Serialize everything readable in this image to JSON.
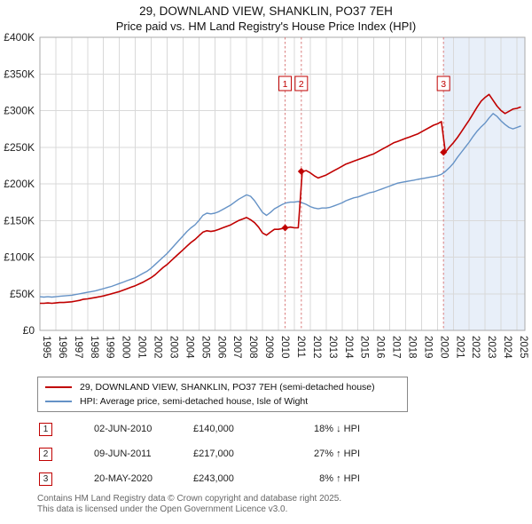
{
  "page": {
    "title": "29, DOWNLAND VIEW, SHANKLIN, PO37 7EH",
    "subtitle": "Price paid vs. HM Land Registry's House Price Index (HPI)",
    "footer_line1": "Contains HM Land Registry data © Crown copyright and database right 2025.",
    "footer_line2": "This data is licensed under the Open Government Licence v3.0."
  },
  "legend": [
    {
      "label": "29, DOWNLAND VIEW, SHANKLIN, PO37 7EH (semi-detached house)",
      "color": "#c00000"
    },
    {
      "label": "HPI: Average price, semi-detached house, Isle of Wight",
      "color": "#6592c6"
    }
  ],
  "transactions": [
    {
      "num": "1",
      "date": "02-JUN-2010",
      "price": "£140,000",
      "hpi_diff": "18% ↓ HPI"
    },
    {
      "num": "2",
      "date": "09-JUN-2011",
      "price": "£217,000",
      "hpi_diff": "27% ↑ HPI"
    },
    {
      "num": "3",
      "date": "20-MAY-2020",
      "price": "£243,000",
      "hpi_diff": "8% ↑ HPI"
    }
  ],
  "chart_data": {
    "type": "line",
    "title": "29, DOWNLAND VIEW, SHANKLIN, PO37 7EH",
    "subtitle": "Price paid vs. HM Land Registry's House Price Index (HPI)",
    "x_unit": "year",
    "x_start": 1995,
    "x_step": 0.25,
    "xlim": [
      1995,
      2025.5
    ],
    "ylim_gbp": [
      0,
      400000
    ],
    "yticks": [
      {
        "value_k": 0,
        "label": "£0"
      },
      {
        "value_k": 50,
        "label": "£50K"
      },
      {
        "value_k": 100,
        "label": "£100K"
      },
      {
        "value_k": 150,
        "label": "£150K"
      },
      {
        "value_k": 200,
        "label": "£200K"
      },
      {
        "value_k": 250,
        "label": "£250K"
      },
      {
        "value_k": 300,
        "label": "£300K"
      },
      {
        "value_k": 350,
        "label": "£350K"
      },
      {
        "value_k": 400,
        "label": "£400K"
      }
    ],
    "xticks": [
      1995,
      1996,
      1997,
      1998,
      1999,
      2000,
      2001,
      2002,
      2003,
      2004,
      2005,
      2006,
      2007,
      2008,
      2009,
      2010,
      2011,
      2012,
      2013,
      2014,
      2015,
      2016,
      2017,
      2018,
      2019,
      2020,
      2021,
      2022,
      2023,
      2024,
      2025
    ],
    "series": [
      {
        "name": "HPI: Average price, semi-detached house, Isle of Wight",
        "color": "#6592c6",
        "width": 1.4,
        "values_k": [
          46,
          45.5,
          46,
          45.5,
          46,
          46.5,
          47,
          47.5,
          48,
          49,
          50,
          51,
          52,
          53,
          54,
          55.5,
          57,
          58.5,
          60,
          62,
          64,
          66,
          68,
          70,
          72,
          75,
          78,
          81,
          85,
          90,
          95,
          100,
          105,
          111,
          117,
          123,
          129,
          135,
          140,
          144,
          150,
          157,
          160,
          159,
          160,
          162,
          165,
          168,
          171,
          175,
          179,
          182,
          185,
          183,
          177,
          169,
          161,
          157,
          161,
          166,
          169,
          172,
          174,
          175,
          175,
          176,
          174,
          172,
          169,
          167,
          166,
          167,
          167,
          168,
          170,
          172,
          174,
          177,
          179,
          181,
          182,
          184,
          186,
          188,
          189,
          191,
          193,
          195,
          197,
          199,
          201,
          202,
          203,
          204,
          205,
          206,
          207,
          208,
          209,
          210,
          211,
          213,
          217,
          222,
          228,
          236,
          243,
          250,
          257,
          265,
          272,
          278,
          283,
          290,
          296,
          292,
          286,
          281,
          277,
          275,
          277,
          279
        ]
      },
      {
        "name": "29, DOWNLAND VIEW, SHANKLIN, PO37 7EH (semi-detached house)",
        "color": "#c00000",
        "width": 1.6,
        "values_k": [
          37,
          37,
          37.5,
          37,
          37.5,
          38,
          38,
          38.5,
          39,
          40,
          41,
          42.5,
          43,
          44,
          45,
          46,
          47,
          48.5,
          50,
          51.5,
          53,
          55,
          57,
          59,
          61,
          63.5,
          66,
          69,
          72,
          76,
          81,
          86,
          90,
          95,
          100,
          105,
          110,
          115,
          120,
          124,
          129,
          134,
          136,
          135,
          136,
          138,
          140,
          142,
          144,
          147,
          150,
          152,
          154,
          151,
          147,
          141,
          133,
          130,
          134,
          138,
          138,
          139,
          140,
          141,
          140,
          140,
          217,
          218,
          215,
          211,
          208,
          210,
          212,
          215,
          218,
          221,
          224,
          227,
          229,
          231,
          233,
          235,
          237,
          239,
          241,
          244,
          247,
          250,
          253,
          256,
          258,
          260,
          262,
          264,
          266,
          268,
          271,
          274,
          277,
          280,
          282,
          285,
          243,
          250,
          256,
          263,
          271,
          279,
          287,
          296,
          305,
          313,
          318,
          322,
          314,
          306,
          300,
          296,
          299,
          302,
          303,
          305
        ]
      }
    ],
    "sale_markers": [
      {
        "label": "1",
        "x": 2010.42,
        "value_k": 140
      },
      {
        "label": "2",
        "x": 2011.44,
        "value_k": 217
      },
      {
        "label": "3",
        "x": 2020.38,
        "value_k": 243
      }
    ],
    "shaded_region": {
      "x_from": 2020.38,
      "x_to": 2025.5,
      "color": "#dbe7f6"
    },
    "grid": true,
    "legend_position": "bottom",
    "colors": {
      "grid": "#d9d9d9",
      "border": "#aaaaaa",
      "vline": "#d97c7c",
      "marker": "#c00000"
    }
  }
}
